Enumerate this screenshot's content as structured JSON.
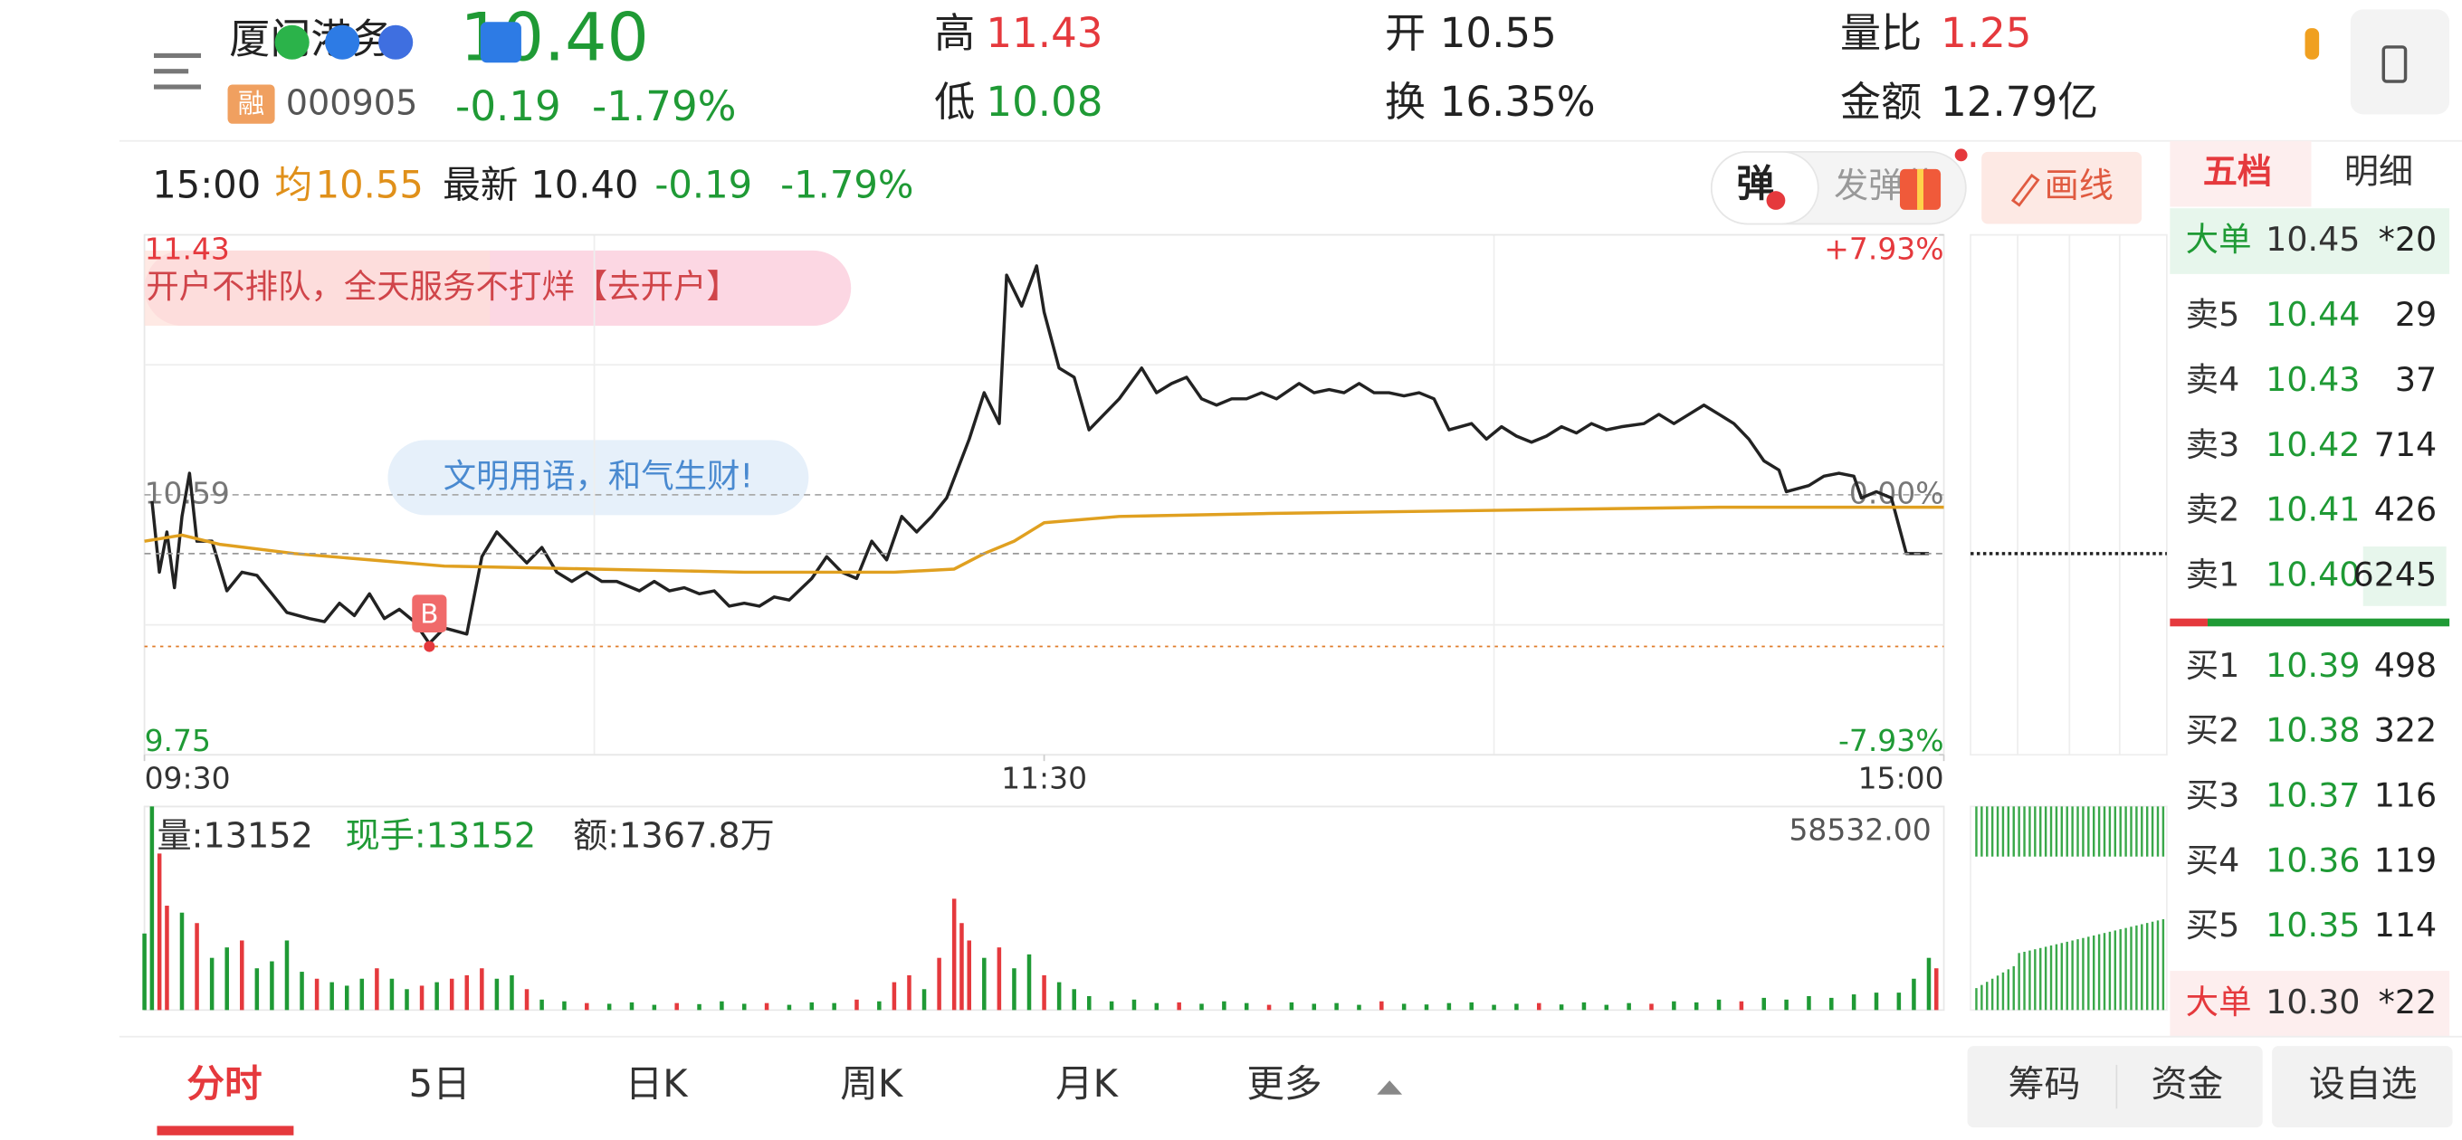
{
  "quote": {
    "name": "厦门港务",
    "price": "10.40",
    "tag": "融",
    "code": "000905",
    "change": "-0.19",
    "change_pct": "-1.79%",
    "high_label": "高",
    "high": "11.43",
    "low_label": "低",
    "low": "10.08",
    "open_label": "开",
    "open": "10.55",
    "turnover_label": "换",
    "turnover": "16.35%",
    "ratio_label": "量比",
    "ratio": "1.25",
    "amount_label": "金额",
    "amount": "12.79亿"
  },
  "info_bar": {
    "time": "15:00",
    "avg_label": "均",
    "avg": "10.55",
    "last_label": "最新",
    "last": "10.40",
    "change": "-0.19",
    "change_pct": "-1.79%"
  },
  "buttons": {
    "danmu": "弹",
    "send_danmu": "发弹幕",
    "draw_line": "画线"
  },
  "banner": "开户不排队，全天服务不打烊【去开户】",
  "bubble": "文明用语，和气生财!",
  "chart_data": [
    {
      "type": "line",
      "xlim": [
        0,
        240
      ],
      "xticks": [
        {
          "value": 0,
          "label": "09:30"
        },
        {
          "value": 120,
          "label": "11:30"
        },
        {
          "value": 240,
          "label": "15:00"
        }
      ],
      "xgrid": [
        60,
        180
      ],
      "ylim": [
        9.75,
        11.43
      ],
      "yticks": [
        9.75,
        10.59,
        11.43
      ],
      "ygrid": [
        10.17,
        11.01
      ],
      "y2lim": [
        -7.93,
        7.93
      ],
      "y2ticks": [
        {
          "value": -7.93,
          "label": "-7.93%"
        },
        {
          "value": 0,
          "label": "0.00%"
        },
        {
          "value": 7.93,
          "label": "+7.93%"
        }
      ],
      "series": [
        {
          "color": "#222222",
          "x": [
            1,
            2,
            3,
            4,
            5,
            6,
            7,
            9,
            11,
            13,
            15,
            17,
            19,
            22,
            24,
            26,
            28,
            30,
            32,
            34,
            36,
            38,
            40,
            43,
            45,
            47,
            49,
            51,
            53,
            55,
            57,
            59,
            61,
            63,
            66,
            68,
            70,
            72,
            74,
            76,
            78,
            80,
            82,
            84,
            86,
            89,
            91,
            93,
            95,
            97,
            99,
            101,
            103,
            105,
            107,
            110,
            112,
            114,
            115,
            117,
            119,
            120,
            122,
            124,
            126,
            128,
            130,
            133,
            135,
            137,
            139,
            141,
            143,
            145,
            147,
            149,
            151,
            154,
            156,
            158,
            160,
            162,
            164,
            166,
            168,
            170,
            172,
            174,
            177,
            179,
            181,
            183,
            185,
            187,
            189,
            191,
            193,
            195,
            197,
            200,
            202,
            204,
            206,
            208,
            210,
            212,
            214,
            216,
            218,
            219,
            222,
            224,
            226,
            228,
            229,
            231,
            233,
            235,
            238
          ],
          "values": [
            10.57,
            10.34,
            10.47,
            10.29,
            10.52,
            10.66,
            10.44,
            10.44,
            10.28,
            10.34,
            10.33,
            10.27,
            10.21,
            10.19,
            10.18,
            10.24,
            10.2,
            10.27,
            10.19,
            10.22,
            10.18,
            10.11,
            10.16,
            10.14,
            10.39,
            10.47,
            10.42,
            10.37,
            10.42,
            10.34,
            10.31,
            10.34,
            10.31,
            10.31,
            10.28,
            10.31,
            10.28,
            10.29,
            10.27,
            10.28,
            10.23,
            10.24,
            10.23,
            10.26,
            10.25,
            10.32,
            10.39,
            10.34,
            10.32,
            10.44,
            10.38,
            10.52,
            10.47,
            10.52,
            10.58,
            10.77,
            10.92,
            10.82,
            11.3,
            11.2,
            11.33,
            11.18,
            11.0,
            10.97,
            10.8,
            10.85,
            10.9,
            11.0,
            10.92,
            10.95,
            10.97,
            10.9,
            10.88,
            10.9,
            10.9,
            10.92,
            10.9,
            10.95,
            10.92,
            10.93,
            10.92,
            10.95,
            10.92,
            10.92,
            10.91,
            10.92,
            10.9,
            10.8,
            10.82,
            10.77,
            10.81,
            10.78,
            10.76,
            10.78,
            10.81,
            10.79,
            10.82,
            10.8,
            10.81,
            10.82,
            10.85,
            10.82,
            10.85,
            10.88,
            10.85,
            10.82,
            10.77,
            10.7,
            10.67,
            10.6,
            10.62,
            10.65,
            10.66,
            10.65,
            10.58,
            10.6,
            10.58,
            10.4,
            10.4
          ]
        },
        {
          "color": "#e0a020",
          "x": [
            0,
            5,
            10,
            20,
            30,
            40,
            60,
            80,
            100,
            108,
            112,
            116,
            120,
            130,
            150,
            180,
            210,
            240
          ],
          "values": [
            10.44,
            10.46,
            10.43,
            10.4,
            10.38,
            10.36,
            10.35,
            10.34,
            10.34,
            10.35,
            10.4,
            10.44,
            10.5,
            10.52,
            10.53,
            10.54,
            10.55,
            10.55
          ]
        }
      ],
      "buy_marker": {
        "label": "B",
        "x": 38,
        "value": 10.1,
        "color": "#e07b2a"
      }
    },
    {
      "type": "bar",
      "xlim": [
        0,
        240
      ],
      "ylim": [
        0,
        58532
      ],
      "yticks": [
        {
          "value": 58532,
          "label": "58532.00"
        }
      ],
      "vol_label": "量:13152",
      "hand_label": "现手:13152",
      "amount_label": "额:1367.8万",
      "series": [
        {
          "color": "#e5393d",
          "x": [
            2,
            3,
            7,
            13,
            23,
            31,
            37,
            41,
            43,
            45,
            51,
            59,
            71,
            83,
            95,
            100,
            102,
            106,
            108,
            109,
            110,
            114,
            120,
            138,
            150,
            165,
            186,
            201,
            213,
            239
          ],
          "values": [
            45000,
            30000,
            25000,
            20000,
            9000,
            12000,
            7000,
            9000,
            10000,
            12000,
            6000,
            2000,
            2000,
            2000,
            3000,
            8000,
            10000,
            15000,
            32000,
            25000,
            20000,
            18000,
            10000,
            2200,
            1500,
            2500,
            2000,
            1800,
            2500,
            12000
          ]
        },
        {
          "color": "#1f9a35",
          "x": [
            0,
            1,
            5,
            9,
            11,
            15,
            17,
            19,
            21,
            25,
            27,
            29,
            33,
            35,
            39,
            47,
            49,
            53,
            56,
            62,
            65,
            68,
            74,
            77,
            80,
            86,
            89,
            92,
            98,
            104,
            112,
            116,
            118,
            122,
            124,
            126,
            129,
            132,
            135,
            141,
            144,
            147,
            153,
            156,
            159,
            162,
            168,
            171,
            174,
            177,
            180,
            183,
            189,
            192,
            195,
            198,
            204,
            207,
            210,
            216,
            219,
            222,
            225,
            228,
            231,
            234,
            236,
            238
          ],
          "values": [
            22000,
            58532,
            28000,
            15000,
            18000,
            12000,
            14000,
            20000,
            11000,
            8000,
            7000,
            9000,
            9000,
            6000,
            8000,
            9000,
            10000,
            3000,
            2500,
            1800,
            2200,
            1500,
            1700,
            2500,
            1800,
            1500,
            2200,
            2000,
            2500,
            6000,
            15000,
            12000,
            16000,
            8000,
            6000,
            4000,
            2500,
            3000,
            2000,
            1800,
            2500,
            2000,
            2200,
            1800,
            2000,
            1500,
            1800,
            1600,
            2000,
            2200,
            1500,
            1800,
            1600,
            2200,
            1500,
            2000,
            2500,
            2200,
            3000,
            3500,
            3000,
            4000,
            3500,
            4500,
            5000,
            5000,
            9000,
            15000
          ]
        }
      ]
    }
  ],
  "order_book": {
    "tabs": [
      "五档",
      "明细"
    ],
    "big_sell": {
      "label": "大单",
      "price": "10.45",
      "count": "*20"
    },
    "asks": [
      {
        "label": "卖5",
        "price": "10.44",
        "volume": "29"
      },
      {
        "label": "卖4",
        "price": "10.43",
        "volume": "37"
      },
      {
        "label": "卖3",
        "price": "10.42",
        "volume": "714"
      },
      {
        "label": "卖2",
        "price": "10.41",
        "volume": "426"
      },
      {
        "label": "卖1",
        "price": "10.40",
        "volume": "6245"
      }
    ],
    "bids": [
      {
        "label": "买1",
        "price": "10.39",
        "volume": "498"
      },
      {
        "label": "买2",
        "price": "10.38",
        "volume": "322"
      },
      {
        "label": "买3",
        "price": "10.37",
        "volume": "116"
      },
      {
        "label": "买4",
        "price": "10.36",
        "volume": "119"
      },
      {
        "label": "买5",
        "price": "10.35",
        "volume": "114"
      }
    ],
    "big_buy": {
      "label": "大单",
      "price": "10.30",
      "count": "*22"
    }
  },
  "tabs": [
    "分时",
    "5日",
    "日K",
    "周K",
    "月K",
    "更多"
  ],
  "actions": [
    "筹码",
    "资金",
    "设自选"
  ]
}
